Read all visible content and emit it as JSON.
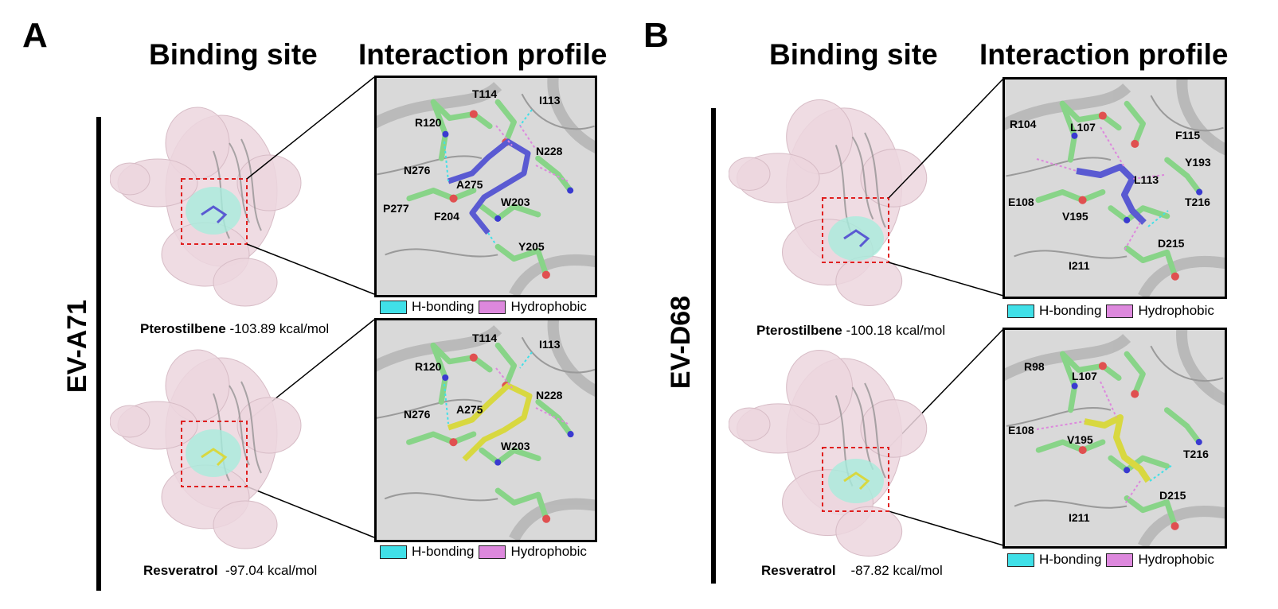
{
  "panels": [
    {
      "letter": "A",
      "heading_binding": "Binding site",
      "heading_profile": "Interaction profile",
      "virus": "EV-A71",
      "rows": [
        {
          "compound": "Pterostilbene",
          "energy": "-103.89 kcal/mol",
          "residues": [
            "T114",
            "I113",
            "R120",
            "N228",
            "N276",
            "A275",
            "P277",
            "F204",
            "W203",
            "Y205"
          ]
        },
        {
          "compound": "Resveratrol",
          "energy": "-97.04 kcal/mol",
          "residues": [
            "T114",
            "I113",
            "R120",
            "N228",
            "N276",
            "A275",
            "W203"
          ]
        }
      ]
    },
    {
      "letter": "B",
      "heading_binding": "Binding site",
      "heading_profile": "Interaction profile",
      "virus": "EV-D68",
      "rows": [
        {
          "compound": "Pterostilbene",
          "energy": "-100.18 kcal/mol",
          "residues": [
            "R104",
            "L107",
            "F115",
            "Y193",
            "E108",
            "L113",
            "T216",
            "V195",
            "D215",
            "I211"
          ]
        },
        {
          "compound": "Resveratrol",
          "energy": "-87.82 kcal/mol",
          "residues": [
            "R98",
            "L107",
            "E108",
            "V195",
            "T216",
            "D215",
            "I211"
          ]
        }
      ]
    }
  ],
  "legend": {
    "hbond_label": "H-bonding",
    "hydrophobic_label": "Hydrophobic",
    "hbond_color": "#40e0e8",
    "hydrophobic_color": "#dd88dd"
  },
  "colors": {
    "surface": "#ecd6de",
    "site": "#a8ecdc",
    "carbon": "#88d488",
    "pterostilbene": "#5a5ad2",
    "resveratrol": "#d8d840",
    "ribbon": "#b0b0b0"
  }
}
